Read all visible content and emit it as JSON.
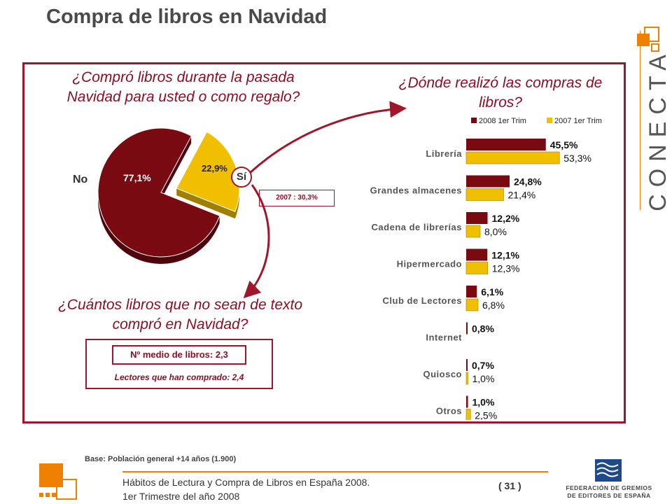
{
  "title": "Compra de libros en Navidad",
  "q1": "¿Compró libros durante la pasada Navidad para usted o como regalo?",
  "q2": "¿Dónde realizó las compras de libros?",
  "q3": "¿Cuántos libros que no sean de texto compró en Navidad?",
  "pie": {
    "no_label": "No",
    "si_label": "Sí",
    "no_value_label": "77,1%",
    "si_value_label": "22,9%",
    "prev_note": "2007 : 30,3%"
  },
  "books": {
    "avg_label": "Nº medio de libros: 2,3",
    "readers_label": "Lectores que han comprado: 2,4"
  },
  "base": "Base: Población general +14 años (1.900)",
  "footer": {
    "line1": "Hábitos de Lectura y Compra de Libros en España 2008.",
    "line2": "1er Trimestre del año 2008",
    "page": "( 31 )"
  },
  "logos": {
    "conecta": "CONECTA",
    "federation_line1": "FEDERACIÓN DE GREMIOS",
    "federation_line2": "DE EDITORES DE ESPAÑA"
  },
  "colors": {
    "accent": "#a0162a",
    "series_2008": "#7a0a12",
    "series_2007": "#f0c000",
    "orange": "#f08000"
  },
  "chart_data": [
    {
      "type": "pie",
      "categories": [
        "No",
        "Sí"
      ],
      "values": [
        77.1,
        22.9
      ],
      "value_labels": [
        "77,1%",
        "22,9%"
      ],
      "title": "¿Compró libros durante la pasada Navidad para usted o como regalo?",
      "annotation": "2007 : 30,3%"
    },
    {
      "type": "bar",
      "orientation": "horizontal",
      "title": "¿Dónde realizó las compras de libros?",
      "categories": [
        "Librería",
        "Grandes almacenes",
        "Cadena de librerías",
        "Hipermercado",
        "Club de Lectores",
        "Internet",
        "Quiosco",
        "Otros"
      ],
      "series": [
        {
          "name": "2008 1er Trim",
          "values": [
            45.5,
            24.8,
            12.2,
            12.1,
            6.1,
            0.8,
            0.7,
            1.0
          ],
          "value_labels": [
            "45,5%",
            "24,8%",
            "12,2%",
            "12,1%",
            "6,1%",
            "0,8%",
            "0,7%",
            "1,0%"
          ]
        },
        {
          "name": "2007 1er Trim",
          "values": [
            53.3,
            21.4,
            8.0,
            12.3,
            6.8,
            null,
            1.0,
            2.5
          ],
          "value_labels": [
            "53,3%",
            "21,4%",
            "8,0%",
            "12,3%",
            "6,8%",
            "",
            "1,0%",
            "2,5%"
          ]
        }
      ],
      "legend": "top"
    }
  ]
}
